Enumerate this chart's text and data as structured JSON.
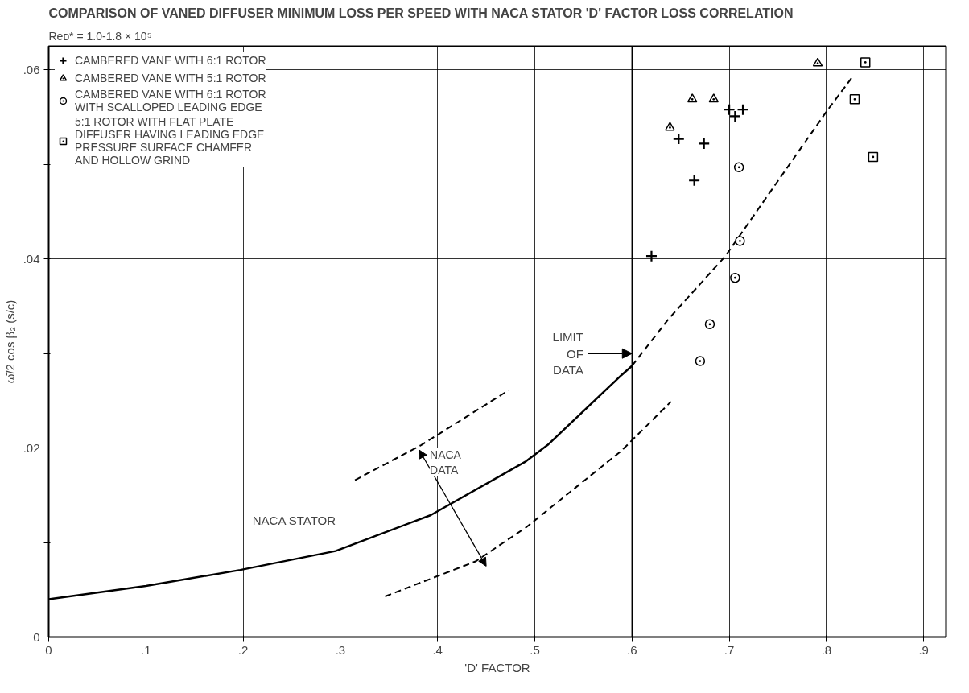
{
  "chart_data": {
    "type": "scatter",
    "title": "COMPARISON OF VANED DIFFUSER MINIMUM LOSS PER SPEED WITH NACA STATOR 'D' FACTOR LOSS CORRELATION",
    "subtitle": "Reᴅ* = 1.0-1.8 × 10⁵",
    "xlabel": "'D' FACTOR",
    "ylabel": "ω̄/2 cos β₂ (s/c)",
    "xlim": [
      0,
      0.923
    ],
    "ylim": [
      0,
      0.0625
    ],
    "xticks": [
      0,
      {
        "value": 0.1,
        "label": ".1"
      },
      {
        "value": 0.2,
        "label": ".2"
      },
      {
        "value": 0.3,
        "label": ".3"
      },
      {
        "value": 0.4,
        "label": ".4"
      },
      {
        "value": 0.5,
        "label": ".5"
      },
      {
        "value": 0.6,
        "label": ".6"
      },
      {
        "value": 0.7,
        "label": ".7"
      },
      {
        "value": 0.8,
        "label": ".8"
      },
      {
        "value": 0.9,
        "label": ".9"
      }
    ],
    "yticks": [
      0,
      {
        "value": 0.01,
        "label": null
      },
      {
        "value": 0.02,
        "label": ".02"
      },
      {
        "value": 0.03,
        "label": null
      },
      {
        "value": 0.04,
        "label": ".04"
      },
      {
        "value": 0.05,
        "label": null
      },
      {
        "value": 0.06,
        "label": ".06"
      }
    ],
    "grid": true,
    "legend": "top left",
    "series": [
      {
        "name": "CAMBERED VANE WITH 6:1 ROTOR",
        "marker": "cross",
        "color": "#000000",
        "x": [
          0.62,
          0.648,
          0.674,
          0.664,
          0.7,
          0.714,
          0.706
        ],
        "values": [
          0.0403,
          0.0527,
          0.0522,
          0.0483,
          0.0558,
          0.0558,
          0.0551
        ]
      },
      {
        "name": "CAMBERED VANE WITH 5:1 ROTOR",
        "marker": "triangle",
        "color": "#000000",
        "x": [
          0.639,
          0.662,
          0.684,
          0.791
        ],
        "values": [
          0.0539,
          0.0569,
          0.0569,
          0.0607
        ]
      },
      {
        "name": "CAMBERED VANE WITH 6:1 ROTOR\nWITH SCALLOPED LEADING EDGE",
        "marker": "circle",
        "color": "#000000",
        "x": [
          0.71,
          0.711,
          0.706,
          0.68,
          0.67
        ],
        "values": [
          0.0497,
          0.0419,
          0.038,
          0.0331,
          0.0292
        ]
      },
      {
        "name": "5:1 ROTOR WITH FLAT PLATE\nDIFFUSER HAVING LEADING EDGE\nPRESSURE SURFACE CHAMFER\nAND HOLLOW GRIND",
        "marker": "square",
        "color": "#000000",
        "x": [
          0.84,
          0.829,
          0.848
        ],
        "values": [
          0.0608,
          0.0569,
          0.0508
        ]
      },
      {
        "type": "line",
        "line_style": "solid",
        "color": "#000000",
        "x": [
          0,
          0.1,
          0.197,
          0.295,
          0.393,
          0.491,
          0.513,
          0.589,
          0.6
        ],
        "values": [
          0.004,
          0.0054,
          0.0071,
          0.0091,
          0.0129,
          0.0186,
          0.0203,
          0.0277,
          0.0287
        ]
      },
      {
        "type": "line",
        "line_style": "dashed",
        "color": "#000000",
        "x": [
          0.6,
          0.638,
          0.696,
          0.8,
          0.827
        ],
        "values": [
          0.0287,
          0.0337,
          0.0403,
          0.0556,
          0.0593
        ]
      },
      {
        "type": "line",
        "line_style": "dashed",
        "color": "#000000",
        "x": [
          0.315,
          0.383,
          0.473
        ],
        "values": [
          0.0166,
          0.0203,
          0.0261
        ]
      },
      {
        "type": "line",
        "line_style": "dashed",
        "color": "#000000",
        "x": [
          0.346,
          0.439,
          0.491,
          0.589,
          0.64
        ],
        "values": [
          0.0043,
          0.008,
          0.0116,
          0.0197,
          0.0249
        ]
      }
    ],
    "ref_lines": [
      {
        "axis": "x",
        "value": 0.6,
        "label": "LIMIT\nOF\nDATA"
      }
    ],
    "annotations": [
      "NACA\nDATA",
      {
        "text": "NACA STATOR",
        "x": 0.3,
        "y": 0.0091
      }
    ]
  }
}
